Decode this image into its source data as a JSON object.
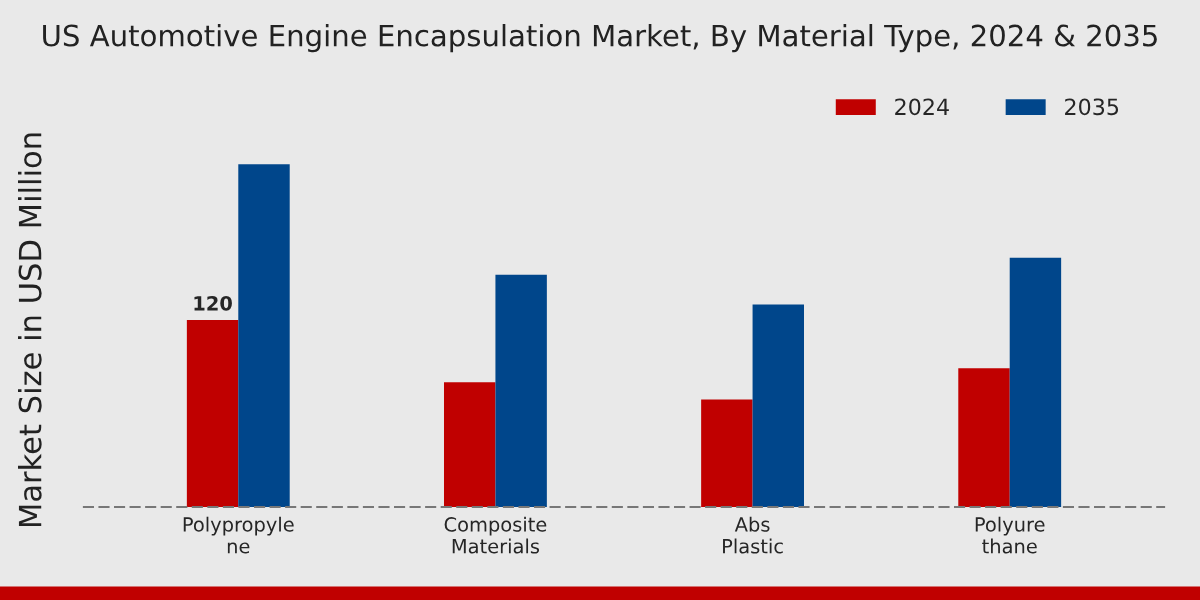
{
  "chart_data": {
    "type": "bar",
    "title": "US Automotive Engine Encapsulation Market, By Material Type, 2024 & 2035",
    "ylabel": "Market Size in USD Million",
    "categories": [
      "Polypropyle\nne",
      "Composite\nMaterials",
      "Abs\nPlastic",
      "Polyure\nthane"
    ],
    "series": [
      {
        "name": "2024",
        "color": "#c00000",
        "values": [
          120,
          80,
          69,
          89
        ],
        "value_labels": [
          "120",
          null,
          null,
          null
        ]
      },
      {
        "name": "2035",
        "color": "#00468b",
        "values": [
          220,
          149,
          130,
          160
        ]
      }
    ],
    "legend": "top right",
    "grid": false
  }
}
